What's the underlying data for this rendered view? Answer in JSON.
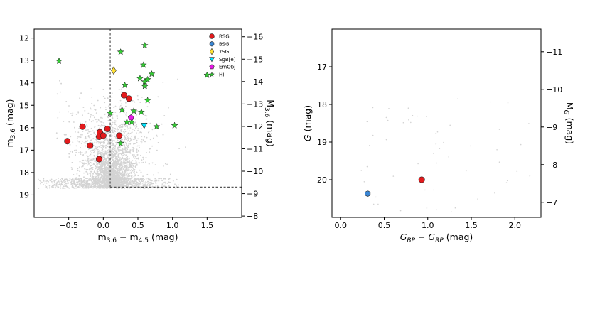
{
  "chart_data": [
    {
      "type": "scatter",
      "title": "",
      "xlabel": "m3.6 − m4.5 (mag)",
      "ylabel": "m3.6 (mag)",
      "ylabel_right": "M3.6 (mag)",
      "xlim": [
        -1.0,
        2.0
      ],
      "ylim": [
        11.6,
        20.0
      ],
      "y_inverted": true,
      "xticks": [
        -0.5,
        0.0,
        0.5,
        1.0,
        1.5
      ],
      "xtick_labels": [
        "−0.5",
        "0.0",
        "0.5",
        "1.0",
        "1.5"
      ],
      "yticks": [
        12,
        13,
        14,
        15,
        16,
        17,
        18,
        19
      ],
      "ytick_labels": [
        "12",
        "13",
        "14",
        "15",
        "16",
        "17",
        "18",
        "19"
      ],
      "right_ticks": [
        -16,
        -15,
        -14,
        -13,
        -12,
        -11,
        -10,
        -9,
        -8
      ],
      "right_tick_labels": [
        "−16",
        "−15",
        "−14",
        "−13",
        "−12",
        "−11",
        "−10",
        "−9",
        "−8"
      ],
      "right_axis_offset": -27.94,
      "legend_position": "top-right",
      "cut_lines": {
        "x": 0.1,
        "y": 18.65
      },
      "background_color": "#d3d3d3",
      "series": [
        {
          "name": "RSG",
          "marker": "circle",
          "color": "#e31a1c",
          "points": [
            [
              -0.52,
              16.6
            ],
            [
              -0.3,
              15.95
            ],
            [
              -0.19,
              16.8
            ],
            [
              -0.05,
              16.2
            ],
            [
              -0.06,
              16.4
            ],
            [
              0.0,
              16.35
            ],
            [
              0.06,
              16.05
            ],
            [
              0.23,
              16.35
            ],
            [
              0.3,
              14.55
            ],
            [
              0.37,
              14.7
            ],
            [
              -0.06,
              17.4
            ]
          ]
        },
        {
          "name": "BSG",
          "marker": "hexagon",
          "color": "#3a86d4",
          "points": []
        },
        {
          "name": "YSG",
          "marker": "diamond",
          "color": "#ffe135",
          "points": [
            [
              0.15,
              13.45
            ]
          ]
        },
        {
          "name": "SgB[e]",
          "marker": "triangle-down",
          "color": "#00e5ff",
          "points": [
            [
              0.59,
              15.9
            ]
          ]
        },
        {
          "name": "EmObj",
          "marker": "pentagon",
          "color": "#e619e6",
          "points": [
            [
              0.4,
              15.55
            ]
          ]
        },
        {
          "name": "HII",
          "marker": "star",
          "color": "#33cc33",
          "points": [
            [
              -0.64,
              13.02
            ],
            [
              0.25,
              12.62
            ],
            [
              0.6,
              12.33
            ],
            [
              0.58,
              13.2
            ],
            [
              0.31,
              14.1
            ],
            [
              0.53,
              13.8
            ],
            [
              0.6,
              13.95
            ],
            [
              0.64,
              13.85
            ],
            [
              0.7,
              13.6
            ],
            [
              0.6,
              14.15
            ],
            [
              0.64,
              14.78
            ],
            [
              0.27,
              15.2
            ],
            [
              0.44,
              15.25
            ],
            [
              0.55,
              15.3
            ],
            [
              0.1,
              15.35
            ],
            [
              0.34,
              15.75
            ],
            [
              0.41,
              15.75
            ],
            [
              0.25,
              16.7
            ],
            [
              0.77,
              15.95
            ],
            [
              1.03,
              15.9
            ],
            [
              1.5,
              13.65
            ]
          ]
        }
      ]
    },
    {
      "type": "scatter",
      "title": "",
      "xlabel": "G_BP − G_RP (mag)",
      "ylabel": "G (mag)",
      "ylabel_right": "M_G (mag)",
      "xlim": [
        -0.1,
        2.3
      ],
      "ylim": [
        16.0,
        21.0
      ],
      "y_inverted": true,
      "xticks": [
        0.0,
        0.5,
        1.0,
        1.5,
        2.0
      ],
      "xtick_labels": [
        "0.0",
        "0.5",
        "1.0",
        "1.5",
        "2.0"
      ],
      "yticks": [
        17,
        18,
        19,
        20
      ],
      "ytick_labels": [
        "17",
        "18",
        "19",
        "20"
      ],
      "right_ticks": [
        -11,
        -10,
        -9,
        -8,
        -7
      ],
      "right_tick_labels": [
        "−11",
        "−10",
        "−9",
        "−8",
        "−7"
      ],
      "right_axis_offset": -27.6,
      "background_color": "#d3d3d3",
      "series": [
        {
          "name": "RSG",
          "marker": "circle",
          "color": "#e31a1c",
          "points": [
            [
              0.93,
              20.0
            ]
          ]
        },
        {
          "name": "BSG",
          "marker": "hexagon",
          "color": "#3a86d4",
          "points": [
            [
              0.31,
              20.37
            ]
          ]
        }
      ]
    }
  ]
}
